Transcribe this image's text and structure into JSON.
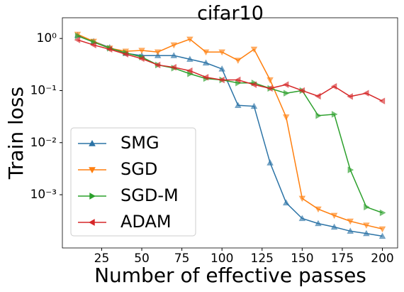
{
  "chart_data": {
    "type": "line",
    "title": "cifar10",
    "x_label": "Number of effective passes",
    "y_label": "Train loss",
    "x": [
      10,
      20,
      30,
      40,
      50,
      60,
      70,
      80,
      90,
      100,
      110,
      120,
      130,
      140,
      150,
      160,
      170,
      180,
      190,
      200
    ],
    "series": [
      {
        "name": "SMG",
        "color": "#2b73a6",
        "marker": "^",
        "values": [
          1.15,
          0.88,
          0.67,
          0.52,
          0.47,
          0.47,
          0.47,
          0.4,
          0.34,
          0.26,
          0.052,
          0.05,
          0.0041,
          0.0007,
          0.00035,
          0.00028,
          0.00024,
          0.0002,
          0.00018,
          0.00016
        ]
      },
      {
        "name": "SGD",
        "color": "#ff7f0e",
        "marker": "v",
        "values": [
          1.2,
          0.88,
          0.65,
          0.57,
          0.59,
          0.55,
          0.75,
          0.97,
          0.55,
          0.55,
          0.38,
          0.62,
          0.16,
          0.031,
          0.00085,
          0.00053,
          0.0004,
          0.00031,
          0.00026,
          0.00022
        ]
      },
      {
        "name": "SGD-M",
        "color": "#2ca02c",
        "marker": ">",
        "values": [
          1.12,
          0.85,
          0.65,
          0.53,
          0.44,
          0.31,
          0.27,
          0.21,
          0.17,
          0.16,
          0.14,
          0.14,
          0.11,
          0.089,
          0.1,
          0.033,
          0.035,
          0.003,
          0.00058,
          0.00045
        ]
      },
      {
        "name": "ADAM",
        "color": "#d62728",
        "marker": "<",
        "values": [
          0.94,
          0.75,
          0.62,
          0.5,
          0.41,
          0.31,
          0.28,
          0.24,
          0.18,
          0.16,
          0.16,
          0.13,
          0.11,
          0.13,
          0.1,
          0.078,
          0.12,
          0.077,
          0.089,
          0.063
        ]
      }
    ],
    "xlim": [
      0.5,
      209.5
    ],
    "xticks": [
      25,
      50,
      75,
      100,
      125,
      150,
      175,
      200
    ],
    "ylim": [
      9.5e-05,
      2.5
    ],
    "log_y": true,
    "yticks": [
      {
        "value": 1,
        "label": "10⁰"
      },
      {
        "value": 0.1,
        "label": "10⁻¹"
      },
      {
        "value": 0.01,
        "label": "10⁻²"
      },
      {
        "value": 0.001,
        "label": "10⁻³"
      }
    ],
    "legend": "lower left"
  }
}
